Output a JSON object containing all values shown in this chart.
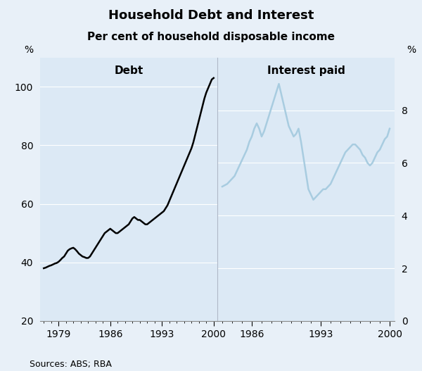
{
  "title": "Household Debt and Interest",
  "subtitle": "Per cent of household disposable income",
  "sources": "Sources: ABS; RBA",
  "background_color": "#e8f0f8",
  "plot_bg_color": "#dce9f5",
  "left_panel": {
    "label": "Debt",
    "xlabel_ticks": [
      1979,
      1986,
      1993,
      2000
    ],
    "ylabel_left": "%",
    "ylim": [
      20,
      110
    ],
    "yticks": [
      20,
      40,
      60,
      80,
      100
    ],
    "xlim": [
      1976.5,
      2000.5
    ],
    "data": {
      "years": [
        1977.0,
        1977.25,
        1977.5,
        1977.75,
        1978.0,
        1978.25,
        1978.5,
        1978.75,
        1979.0,
        1979.25,
        1979.5,
        1979.75,
        1980.0,
        1980.25,
        1980.5,
        1980.75,
        1981.0,
        1981.25,
        1981.5,
        1981.75,
        1982.0,
        1982.25,
        1982.5,
        1982.75,
        1983.0,
        1983.25,
        1983.5,
        1983.75,
        1984.0,
        1984.25,
        1984.5,
        1984.75,
        1985.0,
        1985.25,
        1985.5,
        1985.75,
        1986.0,
        1986.25,
        1986.5,
        1986.75,
        1987.0,
        1987.25,
        1987.5,
        1987.75,
        1988.0,
        1988.25,
        1988.5,
        1988.75,
        1989.0,
        1989.25,
        1989.5,
        1989.75,
        1990.0,
        1990.25,
        1990.5,
        1990.75,
        1991.0,
        1991.25,
        1991.5,
        1991.75,
        1992.0,
        1992.25,
        1992.5,
        1992.75,
        1993.0,
        1993.25,
        1993.5,
        1993.75,
        1994.0,
        1994.25,
        1994.5,
        1994.75,
        1995.0,
        1995.25,
        1995.5,
        1995.75,
        1996.0,
        1996.25,
        1996.5,
        1996.75,
        1997.0,
        1997.25,
        1997.5,
        1997.75,
        1998.0,
        1998.25,
        1998.5,
        1998.75,
        1999.0,
        1999.25,
        1999.5,
        1999.75,
        2000.0
      ],
      "values": [
        38.0,
        38.2,
        38.5,
        38.8,
        39.0,
        39.3,
        39.6,
        39.8,
        40.2,
        40.8,
        41.5,
        42.0,
        43.0,
        44.0,
        44.5,
        44.8,
        45.0,
        44.5,
        43.8,
        43.0,
        42.5,
        42.0,
        41.8,
        41.5,
        41.5,
        42.0,
        43.0,
        44.0,
        45.0,
        46.0,
        47.0,
        48.0,
        49.0,
        50.0,
        50.5,
        51.0,
        51.5,
        51.0,
        50.5,
        50.0,
        50.0,
        50.5,
        51.0,
        51.5,
        52.0,
        52.5,
        53.0,
        54.0,
        55.0,
        55.5,
        55.0,
        54.5,
        54.5,
        54.0,
        53.5,
        53.0,
        53.0,
        53.5,
        54.0,
        54.5,
        55.0,
        55.5,
        56.0,
        56.5,
        57.0,
        57.5,
        58.5,
        59.5,
        61.0,
        62.5,
        64.0,
        65.5,
        67.0,
        68.5,
        70.0,
        71.5,
        73.0,
        74.5,
        76.0,
        77.5,
        79.0,
        81.0,
        83.5,
        86.0,
        88.5,
        91.0,
        93.5,
        96.0,
        98.0,
        99.5,
        101.0,
        102.5,
        103.0
      ]
    }
  },
  "right_panel": {
    "label": "Interest paid",
    "xlabel_ticks": [
      1986,
      1993,
      2000
    ],
    "ylabel_right": "%",
    "ylim_right": [
      0,
      10.0
    ],
    "yticks_right": [
      0,
      2,
      4,
      6,
      8
    ],
    "xlim": [
      1982.5,
      2000.5
    ],
    "data": {
      "years": [
        1983.0,
        1983.25,
        1983.5,
        1983.75,
        1984.0,
        1984.25,
        1984.5,
        1984.75,
        1985.0,
        1985.25,
        1985.5,
        1985.75,
        1986.0,
        1986.25,
        1986.5,
        1986.75,
        1987.0,
        1987.25,
        1987.5,
        1987.75,
        1988.0,
        1988.25,
        1988.5,
        1988.75,
        1989.0,
        1989.25,
        1989.5,
        1989.75,
        1990.0,
        1990.25,
        1990.5,
        1990.75,
        1991.0,
        1991.25,
        1991.5,
        1991.75,
        1992.0,
        1992.25,
        1992.5,
        1992.75,
        1993.0,
        1993.25,
        1993.5,
        1993.75,
        1994.0,
        1994.25,
        1994.5,
        1994.75,
        1995.0,
        1995.25,
        1995.5,
        1995.75,
        1996.0,
        1996.25,
        1996.5,
        1996.75,
        1997.0,
        1997.25,
        1997.5,
        1997.75,
        1998.0,
        1998.25,
        1998.5,
        1998.75,
        1999.0,
        1999.25,
        1999.5,
        1999.75,
        2000.0
      ],
      "values": [
        5.1,
        5.15,
        5.2,
        5.3,
        5.4,
        5.5,
        5.7,
        5.9,
        6.1,
        6.3,
        6.5,
        6.8,
        7.0,
        7.3,
        7.5,
        7.3,
        7.0,
        7.2,
        7.5,
        7.8,
        8.1,
        8.4,
        8.7,
        9.0,
        8.6,
        8.2,
        7.8,
        7.4,
        7.2,
        7.0,
        7.1,
        7.3,
        6.8,
        6.2,
        5.6,
        5.0,
        4.8,
        4.6,
        4.7,
        4.8,
        4.9,
        5.0,
        5.0,
        5.1,
        5.2,
        5.4,
        5.6,
        5.8,
        6.0,
        6.2,
        6.4,
        6.5,
        6.6,
        6.7,
        6.7,
        6.6,
        6.5,
        6.3,
        6.2,
        6.0,
        5.9,
        6.0,
        6.2,
        6.4,
        6.5,
        6.7,
        6.9,
        7.0,
        7.3
      ]
    }
  },
  "line_color_left": "#000000",
  "line_color_right": "#a8cce0",
  "line_width": 1.8,
  "title_fontsize": 13,
  "subtitle_fontsize": 11,
  "label_fontsize": 11,
  "tick_fontsize": 10,
  "source_fontsize": 9,
  "grid_color": "#ffffff",
  "divider_color": "#b0b8c8"
}
